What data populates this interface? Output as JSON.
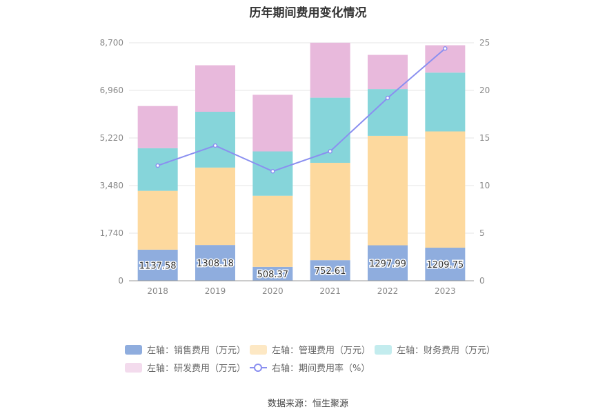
{
  "title": "历年期间费用变化情况",
  "source": "数据来源：恒生聚源",
  "chart_data": {
    "type": "bar",
    "stacked": true,
    "categories": [
      "2018",
      "2019",
      "2020",
      "2021",
      "2022",
      "2023"
    ],
    "left_axis": {
      "min": 0,
      "max": 8700,
      "ticks": [
        "0",
        "1,740",
        "3,480",
        "5,220",
        "6,960",
        "8,700"
      ]
    },
    "right_axis": {
      "min": 0,
      "max": 25,
      "ticks": [
        "0",
        "5",
        "10",
        "15",
        "20",
        "25"
      ]
    },
    "series": [
      {
        "name": "左轴：销售费用（万元）",
        "axis": "left",
        "color": "#8fadde",
        "values": [
          1137.58,
          1308.18,
          508.37,
          752.61,
          1297.99,
          1209.75
        ],
        "labels": [
          "1137.58",
          "1308.18",
          "508.37",
          "752.61",
          "1297.99",
          "1209.75"
        ]
      },
      {
        "name": "左轴：管理费用（万元）",
        "axis": "left",
        "color": "#fdd99e",
        "values": [
          2150,
          2830,
          2600,
          3560,
          4000,
          4250
        ]
      },
      {
        "name": "左轴：财务费用（万元）",
        "axis": "left",
        "color": "#86d5da",
        "values": [
          1560,
          2040,
          1620,
          2380,
          1710,
          2150
        ]
      },
      {
        "name": "左轴：研发费用（万元）",
        "axis": "left",
        "color": "#e8b9dc",
        "values": [
          1540,
          1700,
          2070,
          2010,
          1250,
          1000
        ]
      },
      {
        "name": "右轴：期间费用率（%）",
        "axis": "right",
        "type": "line",
        "color": "#8a8ff0",
        "values": [
          12.1,
          14.2,
          11.5,
          13.6,
          19.2,
          24.4
        ]
      }
    ],
    "grid": true,
    "legend_position": "bottom"
  }
}
